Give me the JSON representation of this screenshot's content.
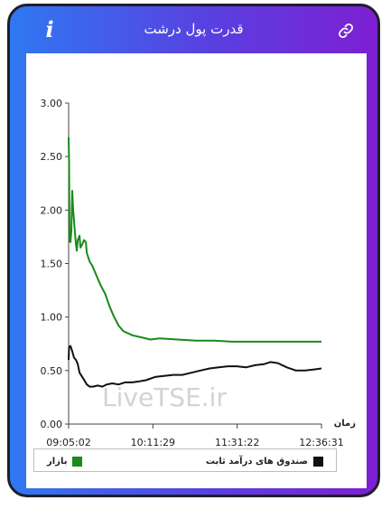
{
  "header": {
    "title": "قدرت پول درشت"
  },
  "watermark": "LiveTSE.ir",
  "chart_data": {
    "type": "line",
    "xlabel": "زمان",
    "x_ticks": [
      "09:05:02",
      "10:11:29",
      "11:31:22",
      "12:36:31"
    ],
    "y_ticks": [
      "0.00",
      "0.50",
      "1.00",
      "1.50",
      "2.00",
      "2.50",
      "3.00"
    ],
    "ylim": [
      0,
      3
    ],
    "grid": false,
    "legend_position": "bottom",
    "series": [
      {
        "name": "بازار",
        "color": "#1a8a1a",
        "points": [
          [
            0,
            2.68
          ],
          [
            0.5,
            2.45
          ],
          [
            1,
            1.72
          ],
          [
            2,
            1.7
          ],
          [
            3,
            1.8
          ],
          [
            4,
            2.18
          ],
          [
            5,
            2.0
          ],
          [
            6,
            1.9
          ],
          [
            7,
            1.78
          ],
          [
            8,
            1.68
          ],
          [
            9,
            1.62
          ],
          [
            10,
            1.72
          ],
          [
            12,
            1.76
          ],
          [
            13,
            1.65
          ],
          [
            15,
            1.68
          ],
          [
            17,
            1.72
          ],
          [
            19,
            1.7
          ],
          [
            20,
            1.6
          ],
          [
            23,
            1.52
          ],
          [
            26,
            1.48
          ],
          [
            30,
            1.4
          ],
          [
            35,
            1.3
          ],
          [
            40,
            1.22
          ],
          [
            45,
            1.1
          ],
          [
            50,
            1.0
          ],
          [
            55,
            0.92
          ],
          [
            60,
            0.87
          ],
          [
            70,
            0.83
          ],
          [
            80,
            0.81
          ],
          [
            90,
            0.79
          ],
          [
            100,
            0.8
          ],
          [
            120,
            0.79
          ],
          [
            140,
            0.78
          ],
          [
            160,
            0.78
          ],
          [
            180,
            0.77
          ],
          [
            200,
            0.77
          ],
          [
            220,
            0.77
          ],
          [
            240,
            0.77
          ],
          [
            260,
            0.77
          ],
          [
            278,
            0.77
          ]
        ]
      },
      {
        "name": "صندوق های درآمد ثابت",
        "color": "#111111",
        "points": [
          [
            0,
            0.6
          ],
          [
            0.5,
            0.72
          ],
          [
            2,
            0.73
          ],
          [
            4,
            0.68
          ],
          [
            6,
            0.62
          ],
          [
            8,
            0.6
          ],
          [
            10,
            0.56
          ],
          [
            12,
            0.48
          ],
          [
            15,
            0.44
          ],
          [
            18,
            0.4
          ],
          [
            20,
            0.37
          ],
          [
            23,
            0.35
          ],
          [
            27,
            0.35
          ],
          [
            32,
            0.36
          ],
          [
            37,
            0.35
          ],
          [
            42,
            0.37
          ],
          [
            48,
            0.38
          ],
          [
            55,
            0.37
          ],
          [
            62,
            0.39
          ],
          [
            70,
            0.39
          ],
          [
            78,
            0.4
          ],
          [
            85,
            0.41
          ],
          [
            95,
            0.44
          ],
          [
            105,
            0.45
          ],
          [
            115,
            0.46
          ],
          [
            125,
            0.46
          ],
          [
            135,
            0.48
          ],
          [
            145,
            0.5
          ],
          [
            155,
            0.52
          ],
          [
            165,
            0.53
          ],
          [
            175,
            0.54
          ],
          [
            185,
            0.54
          ],
          [
            195,
            0.53
          ],
          [
            205,
            0.55
          ],
          [
            215,
            0.56
          ],
          [
            222,
            0.58
          ],
          [
            230,
            0.57
          ],
          [
            240,
            0.53
          ],
          [
            250,
            0.5
          ],
          [
            260,
            0.5
          ],
          [
            270,
            0.51
          ],
          [
            278,
            0.52
          ]
        ]
      }
    ]
  },
  "icons": {
    "info": "i",
    "link": "link-icon"
  }
}
